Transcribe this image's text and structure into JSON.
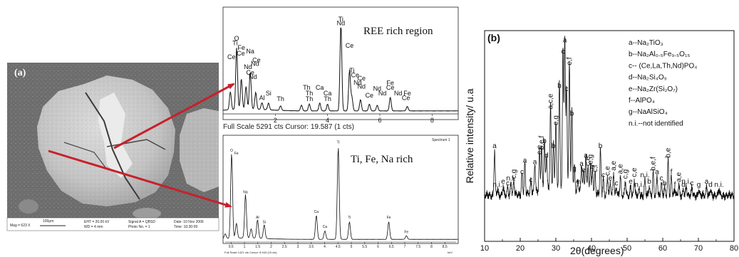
{
  "sem": {
    "panel_label": "(a)",
    "footer": {
      "mag": "Mag = 623 X",
      "scale": "100μm",
      "eht": "EHT = 20.00 kV",
      "wd": "WD = 4 mm",
      "signal": "Signal A = QBSD",
      "photo": "Photo No. = 1",
      "date": "Date :10 Nov 2006",
      "time": "Time :10:30:09"
    }
  },
  "spectrum_top": {
    "label": "REE rich region",
    "x_ticks": [
      "2",
      "4",
      "6",
      "8"
    ],
    "footer": "Full Scale 5291 cts Cursor: 19.587  (1 cts)",
    "peak_labels": [
      {
        "text": "O",
        "x": 0.52,
        "y": 6.3
      },
      {
        "text": "Ti",
        "x": 0.46,
        "y": 5.9
      },
      {
        "text": "Fe",
        "x": 0.7,
        "y": 5.5
      },
      {
        "text": "Na",
        "x": 1.04,
        "y": 5.2
      },
      {
        "text": "Ce",
        "x": 0.68,
        "y": 5.0
      },
      {
        "text": "Ce",
        "x": 0.32,
        "y": 4.7
      },
      {
        "text": "Ce",
        "x": 1.28,
        "y": 4.4
      },
      {
        "text": "Nd",
        "x": 1.22,
        "y": 4.1
      },
      {
        "text": "Nd",
        "x": 0.95,
        "y": 3.8
      },
      {
        "text": "Ce",
        "x": 1.04,
        "y": 3.3
      },
      {
        "text": "Nd",
        "x": 1.14,
        "y": 2.95
      },
      {
        "text": "Si",
        "x": 1.74,
        "y": 1.5
      },
      {
        "text": "Al",
        "x": 1.49,
        "y": 1.1
      },
      {
        "text": "Th",
        "x": 2.2,
        "y": 1.0
      },
      {
        "text": "Th",
        "x": 3.2,
        "y": 2.0
      },
      {
        "text": "Th",
        "x": 3.3,
        "y": 1.5
      },
      {
        "text": "Ca",
        "x": 3.7,
        "y": 2.0
      },
      {
        "text": "Th",
        "x": 3.3,
        "y": 1.0
      },
      {
        "text": "Ca",
        "x": 4.0,
        "y": 1.5
      },
      {
        "text": "Th",
        "x": 4.0,
        "y": 1.0
      },
      {
        "text": "Ti",
        "x": 4.51,
        "y": 8.0
      },
      {
        "text": "Nd",
        "x": 4.51,
        "y": 7.65
      },
      {
        "text": "Ce",
        "x": 4.84,
        "y": 5.7
      },
      {
        "text": "Ti",
        "x": 4.93,
        "y": 3.5
      },
      {
        "text": "Ce",
        "x": 5.05,
        "y": 3.1
      },
      {
        "text": "Ce",
        "x": 5.3,
        "y": 2.8
      },
      {
        "text": "Nd",
        "x": 5.15,
        "y": 2.45
      },
      {
        "text": "Nd",
        "x": 5.3,
        "y": 2.1
      },
      {
        "text": "Ce",
        "x": 5.6,
        "y": 1.3
      },
      {
        "text": "Nd",
        "x": 5.9,
        "y": 1.9
      },
      {
        "text": "Nd",
        "x": 6.1,
        "y": 1.5
      },
      {
        "text": "Fe",
        "x": 6.4,
        "y": 2.4
      },
      {
        "text": "Ce",
        "x": 6.4,
        "y": 2.0
      },
      {
        "text": "Nd",
        "x": 6.7,
        "y": 1.5
      },
      {
        "text": "Fe",
        "x": 7.05,
        "y": 1.5
      },
      {
        "text": "Ce",
        "x": 7.0,
        "y": 1.1
      }
    ],
    "peaks": [
      [
        0.28,
        1.6
      ],
      [
        0.52,
        5.5
      ],
      [
        0.7,
        2.7
      ],
      [
        0.88,
        2.0
      ],
      [
        1.04,
        3.3
      ],
      [
        1.25,
        1.5
      ],
      [
        1.49,
        0.6
      ],
      [
        1.74,
        0.6
      ],
      [
        2.2,
        0.4
      ],
      [
        3.0,
        0.5
      ],
      [
        3.3,
        0.6
      ],
      [
        3.7,
        0.7
      ],
      [
        4.0,
        0.6
      ],
      [
        4.51,
        7.6
      ],
      [
        4.84,
        3.6
      ],
      [
        4.93,
        1.2
      ],
      [
        5.26,
        1.0
      ],
      [
        5.6,
        0.6
      ],
      [
        5.9,
        0.5
      ],
      [
        6.4,
        1.2
      ],
      [
        7.05,
        0.4
      ]
    ]
  },
  "spectrum_bottom": {
    "label": "Ti, Fe, Na rich",
    "tag": "Spectrum 1",
    "x_ticks": [
      "0.5",
      "1",
      "1.5",
      "2",
      "2.5",
      "3",
      "3.5",
      "4",
      "4.5",
      "5",
      "5.5",
      "6",
      "6.5",
      "7",
      "7.5",
      "8",
      "8.5"
    ],
    "footer": "Full Scale 1421 cts Cursor: 8.943  (15 cts)",
    "unit": "keV",
    "peak_labels": [
      {
        "text": "O",
        "x": 0.52,
        "y": 9.6
      },
      {
        "text": "Fe",
        "x": 0.7,
        "y": 9.3
      },
      {
        "text": "Na",
        "x": 1.04,
        "y": 5.1
      },
      {
        "text": "Al",
        "x": 1.49,
        "y": 2.4
      },
      {
        "text": "Si",
        "x": 1.74,
        "y": 1.9
      },
      {
        "text": "Ca",
        "x": 3.69,
        "y": 3.0
      },
      {
        "text": "Ca",
        "x": 4.01,
        "y": 1.4
      },
      {
        "text": "Ti",
        "x": 4.51,
        "y": 10.5
      },
      {
        "text": "Ti",
        "x": 4.93,
        "y": 2.4
      },
      {
        "text": "Fe",
        "x": 6.4,
        "y": 2.4
      },
      {
        "text": "Fe",
        "x": 7.06,
        "y": 0.8
      }
    ],
    "peaks": [
      [
        0.28,
        0.5
      ],
      [
        0.52,
        9.2
      ],
      [
        0.7,
        1.6
      ],
      [
        1.04,
        4.7
      ],
      [
        1.25,
        1.0
      ],
      [
        1.49,
        2.0
      ],
      [
        1.74,
        1.5
      ],
      [
        3.69,
        2.6
      ],
      [
        4.01,
        0.9
      ],
      [
        4.51,
        10.0
      ],
      [
        4.93,
        1.9
      ],
      [
        6.4,
        1.9
      ],
      [
        7.06,
        0.4
      ]
    ]
  },
  "chart_data": {
    "type": "line",
    "panel_label": "(b)",
    "xlabel": "2θ(degrees)",
    "ylabel": "Relative intensity/ u.a",
    "x_ticks": [
      "10",
      "20",
      "30",
      "40",
      "50",
      "60",
      "70",
      "80"
    ],
    "xlim": [
      10,
      80
    ],
    "ylim": [
      0,
      100
    ],
    "legend": [
      {
        "key": "a",
        "text": "--Na₂TiO₃"
      },
      {
        "key": "b",
        "text": "--Na₂Al₀.₅Fe₉.₅O₁₅"
      },
      {
        "key": "c",
        "text": "-- (Ce,La,Th,Nd)PO₄"
      },
      {
        "key": "d",
        "text": "--Na₂Si₄O₉"
      },
      {
        "key": "e",
        "text": "--Na₂Zr(Si₂O₇)"
      },
      {
        "key": "f",
        "text": "--AlPO₄"
      },
      {
        "key": "g",
        "text": "--NaAlSiO₄"
      },
      {
        "key": "n.i.",
        "text": "--not identified"
      }
    ],
    "peaks": [
      {
        "x": 12.8,
        "h": 28,
        "label": "a"
      },
      {
        "x": 13.6,
        "h": 4,
        "label": "n.i."
      },
      {
        "x": 15.2,
        "h": 6,
        "label": "e"
      },
      {
        "x": 16.5,
        "h": 5,
        "label": "c"
      },
      {
        "x": 17.4,
        "h": 8,
        "label": "n.i."
      },
      {
        "x": 18.2,
        "h": 9,
        "label": "c,g"
      },
      {
        "x": 20.5,
        "h": 12,
        "label": "c"
      },
      {
        "x": 21.3,
        "h": 19,
        "label": "a"
      },
      {
        "x": 23.0,
        "h": 7,
        "label": "c"
      },
      {
        "x": 24.1,
        "h": 18,
        "label": "a"
      },
      {
        "x": 25.4,
        "h": 24,
        "label": "c,e"
      },
      {
        "x": 26.0,
        "h": 27,
        "label": "b,e,f"
      },
      {
        "x": 26.8,
        "h": 31,
        "label": "b"
      },
      {
        "x": 27.4,
        "h": 22,
        "label": "d"
      },
      {
        "x": 28.5,
        "h": 52,
        "label": "a,c,e"
      },
      {
        "x": 29.3,
        "h": 28,
        "label": "b"
      },
      {
        "x": 30.0,
        "h": 42,
        "label": "e,g"
      },
      {
        "x": 31.0,
        "h": 65,
        "label": "b"
      },
      {
        "x": 32.0,
        "h": 86,
        "label": "c"
      },
      {
        "x": 32.5,
        "h": 93,
        "label": "a"
      },
      {
        "x": 33.0,
        "h": 63,
        "label": "c"
      },
      {
        "x": 33.8,
        "h": 79,
        "label": "e,f"
      },
      {
        "x": 34.5,
        "h": 48,
        "label": "b"
      },
      {
        "x": 35.2,
        "h": 14,
        "label": "g"
      },
      {
        "x": 36.2,
        "h": 6,
        "label": "e"
      },
      {
        "x": 37.2,
        "h": 17,
        "label": "a"
      },
      {
        "x": 37.8,
        "h": 13,
        "label": "e"
      },
      {
        "x": 38.4,
        "h": 22,
        "label": "a"
      },
      {
        "x": 39.0,
        "h": 17,
        "label": "c,e"
      },
      {
        "x": 39.7,
        "h": 18,
        "label": "e,g"
      },
      {
        "x": 40.3,
        "h": 15,
        "label": "b"
      },
      {
        "x": 41.0,
        "h": 13,
        "label": "c,f"
      },
      {
        "x": 42.5,
        "h": 28,
        "label": "b"
      },
      {
        "x": 43.3,
        "h": 10,
        "label": "c"
      },
      {
        "x": 44.5,
        "h": 11,
        "label": "c,e"
      },
      {
        "x": 45.3,
        "h": 8,
        "label": "e"
      },
      {
        "x": 46.2,
        "h": 14,
        "label": "a,e"
      },
      {
        "x": 47.0,
        "h": 5,
        "label": "c"
      },
      {
        "x": 48.1,
        "h": 12,
        "label": "a,e"
      },
      {
        "x": 49.5,
        "h": 9,
        "label": "c,g"
      },
      {
        "x": 51.0,
        "h": 6,
        "label": "e"
      },
      {
        "x": 52.0,
        "h": 10,
        "label": "c,e"
      },
      {
        "x": 53.4,
        "h": 4,
        "label": "n.i."
      },
      {
        "x": 55.0,
        "h": 10,
        "label": "n.i."
      },
      {
        "x": 56.2,
        "h": 6,
        "label": "b"
      },
      {
        "x": 57.3,
        "h": 14,
        "label": "b,e,f"
      },
      {
        "x": 58.4,
        "h": 12,
        "label": "a"
      },
      {
        "x": 59.6,
        "h": 8,
        "label": "c"
      },
      {
        "x": 60.5,
        "h": 5,
        "label": "b"
      },
      {
        "x": 61.5,
        "h": 22,
        "label": "b,e"
      },
      {
        "x": 62.4,
        "h": 12,
        "label": "f"
      },
      {
        "x": 63.4,
        "h": 4,
        "label": "f"
      },
      {
        "x": 64.5,
        "h": 7,
        "label": "a,e"
      },
      {
        "x": 65.8,
        "h": 4,
        "label": "d"
      },
      {
        "x": 66.6,
        "h": 6,
        "label": "n.i."
      },
      {
        "x": 68.2,
        "h": 5,
        "label": "c"
      },
      {
        "x": 70.1,
        "h": 4,
        "label": "g"
      },
      {
        "x": 72.3,
        "h": 6,
        "label": "a"
      },
      {
        "x": 73.4,
        "h": 4,
        "label": "d"
      },
      {
        "x": 75.8,
        "h": 4,
        "label": "n.i."
      }
    ]
  }
}
